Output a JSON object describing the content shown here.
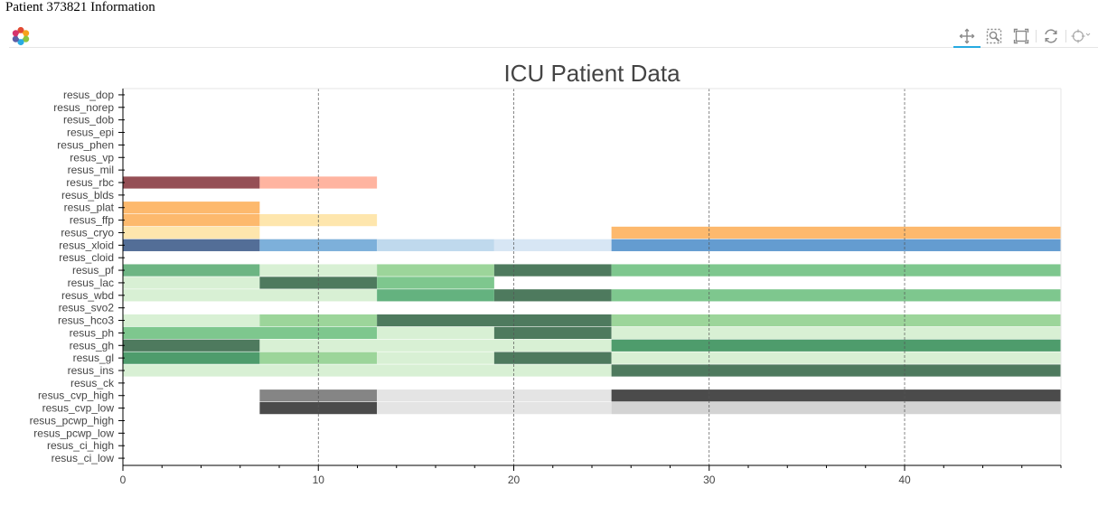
{
  "page": {
    "heading": "Patient 373821 Information"
  },
  "toolbar": {
    "logo": "bokeh-logo",
    "tools": [
      {
        "name": "pan-icon",
        "active": true
      },
      {
        "name": "wheel-zoom-icon",
        "active": false
      },
      {
        "name": "box-zoom-icon",
        "active": false
      },
      {
        "name": "reset-icon",
        "active": false
      },
      {
        "name": "hover-icon",
        "active": false
      }
    ]
  },
  "chart_data": {
    "type": "heatmap",
    "title": "ICU Patient Data",
    "xlim": [
      0,
      48
    ],
    "xticks": [
      0,
      10,
      20,
      30,
      40
    ],
    "grid": "vertical dashed",
    "categories": [
      "resus_dop",
      "resus_norep",
      "resus_dob",
      "resus_epi",
      "resus_phen",
      "resus_vp",
      "resus_mil",
      "resus_rbc",
      "resus_blds",
      "resus_plat",
      "resus_ffp",
      "resus_cryo",
      "resus_xloid",
      "resus_cloid",
      "resus_pf",
      "resus_lac",
      "resus_wbd",
      "resus_svo2",
      "resus_hco3",
      "resus_ph",
      "resus_gh",
      "resus_gl",
      "resus_ins",
      "resus_ck",
      "resus_cvp_high",
      "resus_cvp_low",
      "resus_pcwp_high",
      "resus_pcwp_low",
      "resus_ci_high",
      "resus_ci_low"
    ],
    "cells": [
      {
        "row": "resus_rbc",
        "x0": 0,
        "x1": 7,
        "color": "#954f55"
      },
      {
        "row": "resus_rbc",
        "x0": 7,
        "x1": 13,
        "color": "#ffb4a0"
      },
      {
        "row": "resus_plat",
        "x0": 0,
        "x1": 7,
        "color": "#fdb96d"
      },
      {
        "row": "resus_ffp",
        "x0": 0,
        "x1": 7,
        "color": "#fdb96d"
      },
      {
        "row": "resus_ffp",
        "x0": 7,
        "x1": 13,
        "color": "#fee6ad"
      },
      {
        "row": "resus_cryo",
        "x0": 0,
        "x1": 7,
        "color": "#fee6ad"
      },
      {
        "row": "resus_cryo",
        "x0": 25,
        "x1": 48,
        "color": "#fdb96d"
      },
      {
        "row": "resus_xloid",
        "x0": 0,
        "x1": 7,
        "color": "#536e97"
      },
      {
        "row": "resus_xloid",
        "x0": 7,
        "x1": 13,
        "color": "#7db0da"
      },
      {
        "row": "resus_xloid",
        "x0": 13,
        "x1": 19,
        "color": "#bfd9ed"
      },
      {
        "row": "resus_xloid",
        "x0": 19,
        "x1": 25,
        "color": "#d7e6f4"
      },
      {
        "row": "resus_xloid",
        "x0": 25,
        "x1": 48,
        "color": "#649cd0"
      },
      {
        "row": "resus_pf",
        "x0": 0,
        "x1": 7,
        "color": "#6db583"
      },
      {
        "row": "resus_pf",
        "x0": 7,
        "x1": 13,
        "color": "#d8f0d4"
      },
      {
        "row": "resus_pf",
        "x0": 13,
        "x1": 19,
        "color": "#9cd59a"
      },
      {
        "row": "resus_pf",
        "x0": 19,
        "x1": 25,
        "color": "#4e7a5e"
      },
      {
        "row": "resus_pf",
        "x0": 25,
        "x1": 48,
        "color": "#7ec78e"
      },
      {
        "row": "resus_lac",
        "x0": 0,
        "x1": 7,
        "color": "#d8f0d4"
      },
      {
        "row": "resus_lac",
        "x0": 7,
        "x1": 13,
        "color": "#4e7a5e"
      },
      {
        "row": "resus_lac",
        "x0": 13,
        "x1": 19,
        "color": "#7ec78e"
      },
      {
        "row": "resus_wbd",
        "x0": 0,
        "x1": 13,
        "color": "#d8f0d4"
      },
      {
        "row": "resus_wbd",
        "x0": 13,
        "x1": 19,
        "color": "#64b27f"
      },
      {
        "row": "resus_wbd",
        "x0": 19,
        "x1": 25,
        "color": "#4e7a5e"
      },
      {
        "row": "resus_wbd",
        "x0": 25,
        "x1": 48,
        "color": "#7ec78e"
      },
      {
        "row": "resus_hco3",
        "x0": 0,
        "x1": 7,
        "color": "#d8f0d4"
      },
      {
        "row": "resus_hco3",
        "x0": 7,
        "x1": 13,
        "color": "#9cd59a"
      },
      {
        "row": "resus_hco3",
        "x0": 13,
        "x1": 25,
        "color": "#4e7a5e"
      },
      {
        "row": "resus_hco3",
        "x0": 25,
        "x1": 48,
        "color": "#9cd59a"
      },
      {
        "row": "resus_ph",
        "x0": 0,
        "x1": 13,
        "color": "#7ec78e"
      },
      {
        "row": "resus_ph",
        "x0": 13,
        "x1": 19,
        "color": "#d8f0d4"
      },
      {
        "row": "resus_ph",
        "x0": 19,
        "x1": 25,
        "color": "#4e7a5e"
      },
      {
        "row": "resus_ph",
        "x0": 25,
        "x1": 48,
        "color": "#d8f0d4"
      },
      {
        "row": "resus_gh",
        "x0": 0,
        "x1": 7,
        "color": "#4e7a5e"
      },
      {
        "row": "resus_gh",
        "x0": 7,
        "x1": 25,
        "color": "#d8f0d4"
      },
      {
        "row": "resus_gh",
        "x0": 25,
        "x1": 48,
        "color": "#4e9c6c"
      },
      {
        "row": "resus_gl",
        "x0": 0,
        "x1": 7,
        "color": "#4e9c6c"
      },
      {
        "row": "resus_gl",
        "x0": 7,
        "x1": 13,
        "color": "#9cd59a"
      },
      {
        "row": "resus_gl",
        "x0": 13,
        "x1": 19,
        "color": "#d8f0d4"
      },
      {
        "row": "resus_gl",
        "x0": 19,
        "x1": 25,
        "color": "#4e7a5e"
      },
      {
        "row": "resus_gl",
        "x0": 25,
        "x1": 48,
        "color": "#d8f0d4"
      },
      {
        "row": "resus_ins",
        "x0": 0,
        "x1": 25,
        "color": "#d8f0d4"
      },
      {
        "row": "resus_ins",
        "x0": 25,
        "x1": 48,
        "color": "#4e7a5e"
      },
      {
        "row": "resus_cvp_high",
        "x0": 7,
        "x1": 13,
        "color": "#858585"
      },
      {
        "row": "resus_cvp_high",
        "x0": 13,
        "x1": 25,
        "color": "#e4e4e4"
      },
      {
        "row": "resus_cvp_high",
        "x0": 25,
        "x1": 48,
        "color": "#4b4b4b"
      },
      {
        "row": "resus_cvp_low",
        "x0": 7,
        "x1": 13,
        "color": "#4b4b4b"
      },
      {
        "row": "resus_cvp_low",
        "x0": 13,
        "x1": 25,
        "color": "#e4e4e4"
      },
      {
        "row": "resus_cvp_low",
        "x0": 25,
        "x1": 48,
        "color": "#d3d3d3"
      }
    ]
  }
}
